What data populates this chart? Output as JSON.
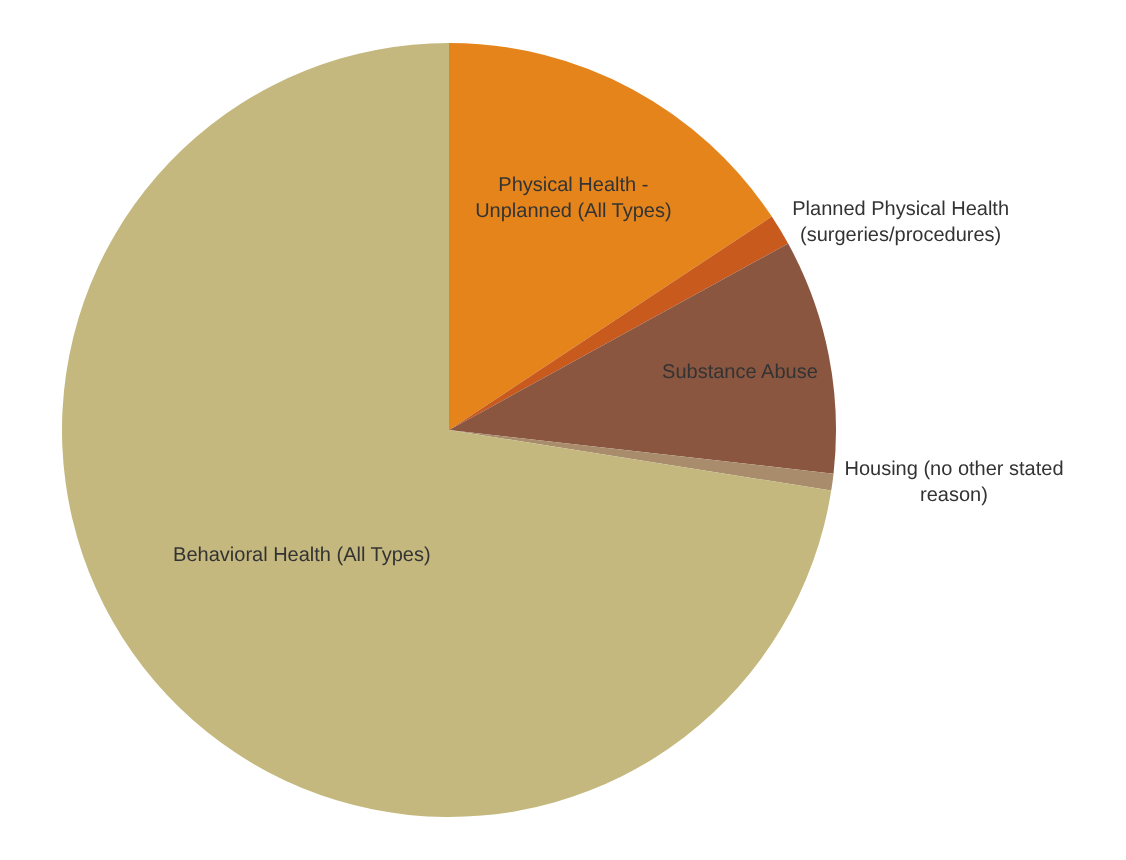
{
  "chart_data": {
    "type": "pie",
    "categories": [
      "Physical Health -\nUnplanned (All Types)",
      "Planned Physical Health\n(surgeries/procedures)",
      "Substance Abuse",
      "Housing (no other stated\nreason)",
      "Behavioral Health (All Types)"
    ],
    "values": [
      15.7,
      1.3,
      9.8,
      0.7,
      72.5
    ],
    "colors": [
      "#e4841a",
      "#c85a1e",
      "#8a5640",
      "#a88c6c",
      "#c4b87e"
    ],
    "legend": false
  }
}
